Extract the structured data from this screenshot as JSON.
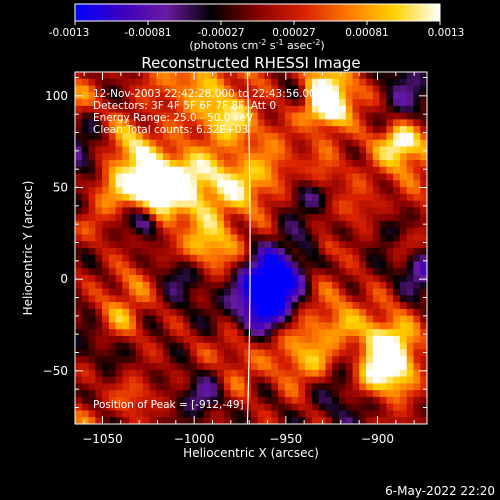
{
  "chart_data": {
    "type": "heatmap",
    "title": "Reconstructed RHESSI Image",
    "xlabel": "Heliocentric X (arcsec)",
    "ylabel": "Heliocentric Y (arcsec)",
    "xlim": [
      -1065,
      -873
    ],
    "ylim": [
      -79,
      113
    ],
    "xticks": [
      -1050,
      -1000,
      -950,
      -900
    ],
    "yticks": [
      -50,
      0,
      50,
      100
    ],
    "colorbar": {
      "ticks": [
        "-0.0013",
        "-0.00081",
        "-0.00027",
        "0.00027",
        "0.00081",
        "0.0013"
      ],
      "units_prefix": "(photons cm",
      "units_exp1": "-2",
      "units_mid": " s",
      "units_exp2": "-1",
      "units_mid2": " asec",
      "units_exp3": "-2",
      "units_suffix": ")",
      "colors": [
        "#0000ff",
        "#3a00c0",
        "#6a1aa0",
        "#000000",
        "#8a0000",
        "#d82000",
        "#ff7a00",
        "#ffd200",
        "#ffffff"
      ]
    },
    "annotations": [
      "12-Nov-2003 22:42:28.000 to 22:43:56.000",
      "Detectors: 3F 4F 5F 6F 7F 8F, Att 0",
      "Energy Range: 25.0 - 50.0 keV",
      "Clean    Total counts: 6.32E+03"
    ],
    "peak_label": "Position of Peak = [-912,-49]",
    "limb_color": "#ffffff"
  },
  "footer": {
    "timestamp": "6-May-2022 22:20"
  }
}
